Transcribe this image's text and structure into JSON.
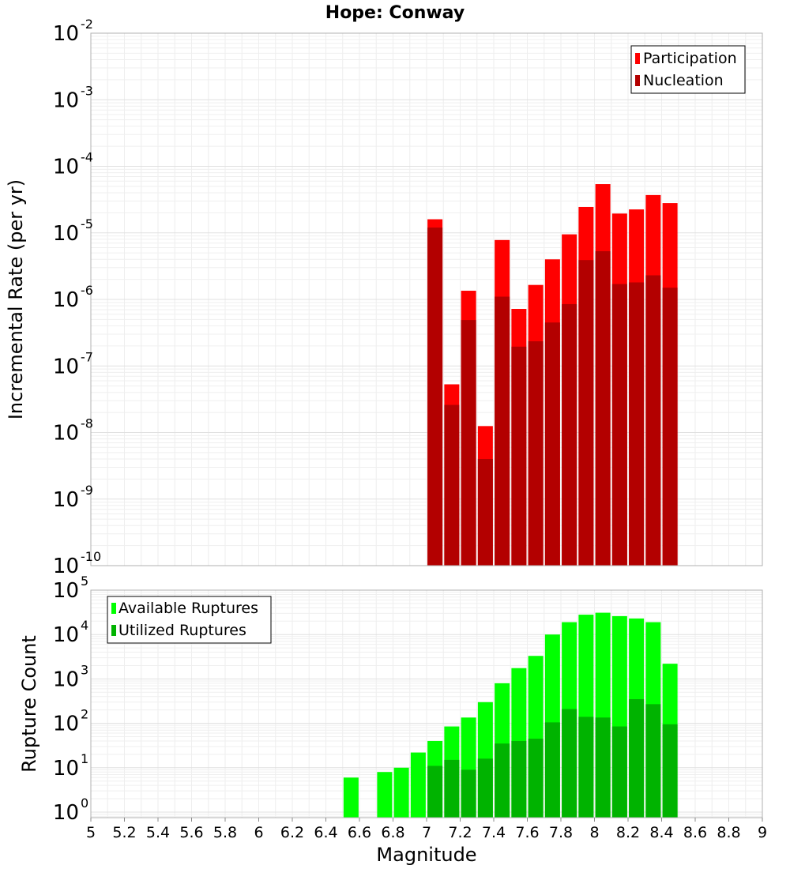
{
  "title": "Hope: Conway",
  "colors": {
    "participation": "#ff0000",
    "nucleation": "#b30000",
    "available": "#00ff00",
    "utilized": "#00b300"
  },
  "chart_data": [
    {
      "type": "bar",
      "panel": "top",
      "title": "Hope: Conway",
      "xlabel": "",
      "ylabel": "Incremental Rate (per yr)",
      "xlim": [
        5,
        9
      ],
      "ylim": [
        1e-10,
        0.01
      ],
      "yscale": "log",
      "grid": true,
      "legend_placement": "top-right",
      "x": [
        7.05,
        7.15,
        7.25,
        7.35,
        7.45,
        7.55,
        7.65,
        7.75,
        7.85,
        7.95,
        8.05,
        8.15,
        8.25,
        8.35,
        8.45
      ],
      "series": [
        {
          "name": "Participation",
          "color": "#ff0000",
          "values": [
            1.6e-05,
            5.3e-08,
            1.35e-06,
            1.25e-08,
            7.8e-06,
            7.2e-07,
            1.65e-06,
            4e-06,
            9.5e-06,
            2.45e-05,
            5.4e-05,
            1.95e-05,
            2.25e-05,
            3.7e-05,
            2.8e-05
          ]
        },
        {
          "name": "Nucleation",
          "color": "#b30000",
          "values": [
            1.2e-05,
            2.6e-08,
            4.9e-07,
            4e-09,
            1.1e-06,
            1.95e-07,
            2.35e-07,
            4.5e-07,
            8.5e-07,
            3.9e-06,
            5.3e-06,
            1.7e-06,
            1.8e-06,
            2.3e-06,
            1.5e-06
          ]
        }
      ]
    },
    {
      "type": "bar",
      "panel": "bottom",
      "title": "",
      "xlabel": "Magnitude",
      "ylabel": "Rupture Count",
      "xlim": [
        5,
        9
      ],
      "ylim": [
        0.75,
        100000.0
      ],
      "yscale": "log",
      "grid": true,
      "legend_placement": "top-left",
      "x": [
        6.55,
        6.65,
        6.75,
        6.85,
        6.95,
        7.05,
        7.15,
        7.25,
        7.35,
        7.45,
        7.55,
        7.65,
        7.75,
        7.85,
        7.95,
        8.05,
        8.15,
        8.25,
        8.35,
        8.45
      ],
      "series": [
        {
          "name": "Available Ruptures",
          "color": "#00ff00",
          "values": [
            6,
            0,
            8,
            10,
            22,
            40,
            85,
            135,
            300,
            800,
            1750,
            3300,
            10000,
            19000,
            28000,
            31000,
            26000,
            23000,
            19000,
            2200
          ]
        },
        {
          "name": "Utilized Ruptures",
          "color": "#00b300",
          "values": [
            0,
            0,
            0,
            0,
            0,
            11,
            15,
            9,
            16,
            35,
            40,
            45,
            105,
            210,
            140,
            135,
            85,
            350,
            270,
            95
          ]
        }
      ]
    }
  ],
  "axes": {
    "x_ticks": [
      "5",
      "5.2",
      "5.4",
      "5.6",
      "5.8",
      "6",
      "6.2",
      "6.4",
      "6.6",
      "6.8",
      "7",
      "7.2",
      "7.4",
      "7.6",
      "7.8",
      "8",
      "8.2",
      "8.4",
      "8.6",
      "8.8",
      "9"
    ],
    "top_y_exponents": [
      "-10",
      "-9",
      "-8",
      "-7",
      "-6",
      "-5",
      "-4",
      "-3",
      "-2"
    ],
    "bottom_y_exponents": [
      "0",
      "1",
      "2",
      "3",
      "4",
      "5"
    ],
    "tick_base": "10"
  }
}
